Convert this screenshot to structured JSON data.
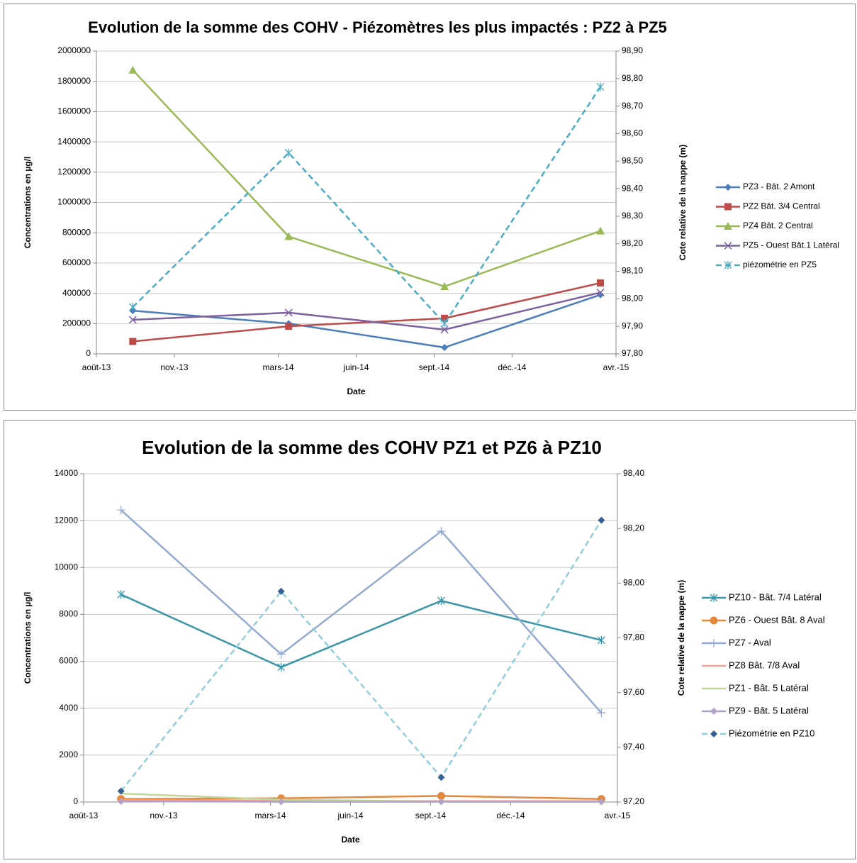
{
  "chart_data": [
    {
      "type": "line",
      "title": "Evolution de la somme des COHV - Piézomètres les plus impactés : PZ2 à PZ5",
      "x_label": "Date",
      "y_label": "Concentrations en µg/l",
      "y2_label": "Cote relative de la nappe (m)",
      "x": [
        "2013-09",
        "2014-03",
        "2014-09",
        "2015-03"
      ],
      "xlim": [
        "2013-08",
        "2015-04"
      ],
      "xticks": [
        {
          "value": "2013-08",
          "label": "août-13"
        },
        {
          "value": "2013-11",
          "label": "nov.-13"
        },
        {
          "value": "2014-03",
          "label": "mars-14"
        },
        {
          "value": "2014-06",
          "label": "juin-14"
        },
        {
          "value": "2014-09",
          "label": "sept.-14"
        },
        {
          "value": "2014-12",
          "label": "déc.-14"
        },
        {
          "value": "2015-04",
          "label": "avr.-15"
        }
      ],
      "ylim": [
        0,
        2000000
      ],
      "yticks": [
        0,
        200000,
        400000,
        600000,
        800000,
        1000000,
        1200000,
        1400000,
        1600000,
        1800000,
        2000000
      ],
      "y2lim": [
        97.8,
        98.9
      ],
      "y2ticks": [
        {
          "value": 97.8,
          "label": "97,80"
        },
        {
          "value": 97.9,
          "label": "97,90"
        },
        {
          "value": 98.0,
          "label": "98,00"
        },
        {
          "value": 98.1,
          "label": "98,10"
        },
        {
          "value": 98.2,
          "label": "98,20"
        },
        {
          "value": 98.3,
          "label": "98,30"
        },
        {
          "value": 98.4,
          "label": "98,40"
        },
        {
          "value": 98.5,
          "label": "98,50"
        },
        {
          "value": 98.6,
          "label": "98,60"
        },
        {
          "value": 98.7,
          "label": "98,70"
        },
        {
          "value": 98.8,
          "label": "98,80"
        },
        {
          "value": 98.9,
          "label": "98,90"
        }
      ],
      "grid": true,
      "legend": "right",
      "series": [
        {
          "name": "PZ3 - Bât. 2 Amont",
          "color": "#4a7ebb",
          "marker": "diamond",
          "values": [
            285000,
            200000,
            42000,
            390000
          ]
        },
        {
          "name": "PZ2 Bât. 3/4 Central",
          "color": "#be4b48",
          "marker": "square",
          "values": [
            82000,
            182000,
            235000,
            468000
          ]
        },
        {
          "name": "PZ4 Bât. 2 Central",
          "color": "#98b954",
          "marker": "triangle",
          "values": [
            1875000,
            775000,
            445000,
            812000
          ]
        },
        {
          "name": "PZ5 - Ouest Bât.1 Latéral",
          "color": "#7d60a0",
          "marker": "x",
          "values": [
            225000,
            272000,
            160000,
            405000
          ]
        },
        {
          "name": "piézométrie en PZ5",
          "color": "#4bacc6",
          "marker": "asterisk",
          "dashed": true,
          "axis": "y2",
          "values": [
            97.97,
            98.53,
            97.91,
            98.77
          ]
        }
      ]
    },
    {
      "type": "line",
      "title": "Evolution de la somme des COHV PZ1 et PZ6 à PZ10",
      "x_label": "Date",
      "y_label": "Concentrations en µg/l",
      "y2_label": "Cote relative de la nappe (m)",
      "x": [
        "2013-09",
        "2014-03",
        "2014-09",
        "2015-03"
      ],
      "xlim": [
        "2013-08",
        "2015-04"
      ],
      "xticks": [
        {
          "value": "2013-08",
          "label": "août-13"
        },
        {
          "value": "2013-11",
          "label": "nov.-13"
        },
        {
          "value": "2014-03",
          "label": "mars-14"
        },
        {
          "value": "2014-06",
          "label": "juin-14"
        },
        {
          "value": "2014-09",
          "label": "sept.-14"
        },
        {
          "value": "2014-12",
          "label": "déc.-14"
        },
        {
          "value": "2015-04",
          "label": "avr.-15"
        }
      ],
      "ylim": [
        0,
        14000
      ],
      "yticks": [
        0,
        2000,
        4000,
        6000,
        8000,
        10000,
        12000,
        14000
      ],
      "y2lim": [
        97.2,
        98.4
      ],
      "y2ticks": [
        {
          "value": 97.2,
          "label": "97,20"
        },
        {
          "value": 97.4,
          "label": "97,40"
        },
        {
          "value": 97.6,
          "label": "97,60"
        },
        {
          "value": 97.8,
          "label": "97,80"
        },
        {
          "value": 98.0,
          "label": "98,00"
        },
        {
          "value": 98.2,
          "label": "98,20"
        },
        {
          "value": 98.4,
          "label": "98,40"
        }
      ],
      "grid": true,
      "legend": "right",
      "series": [
        {
          "name": "PZ10 - Bât. 7/4 Latéral",
          "color": "#3a96a8",
          "marker": "asterisk",
          "values": [
            8850,
            5750,
            8580,
            6900
          ]
        },
        {
          "name": "PZ6 - Ouest Bât. 8 Aval",
          "color": "#e3883c",
          "marker": "circle",
          "values": [
            130,
            160,
            260,
            130
          ]
        },
        {
          "name": "PZ7 - Aval",
          "color": "#95a9d0",
          "marker": "plus",
          "values": [
            12450,
            6300,
            11550,
            3800
          ]
        },
        {
          "name": "PZ8 Bât. 7/8 Aval",
          "color": "#e6a3a0",
          "marker": "none",
          "values": [
            80,
            60,
            40,
            40
          ]
        },
        {
          "name": "PZ1 -  Bât. 5 Latéral",
          "color": "#c3d69b",
          "marker": "none",
          "values": [
            360,
            100,
            20,
            20
          ]
        },
        {
          "name": "PZ9 -  Bât. 5 Latéral",
          "color": "#b3a2c7",
          "marker": "diamond",
          "values": [
            30,
            10,
            10,
            10
          ]
        },
        {
          "name": "Piézométrie en PZ10",
          "color": "#93cddd",
          "marker_color": "#376092",
          "marker": "diamond",
          "dashed": true,
          "axis": "y2",
          "values": [
            97.24,
            97.97,
            97.29,
            98.23
          ]
        }
      ]
    }
  ]
}
